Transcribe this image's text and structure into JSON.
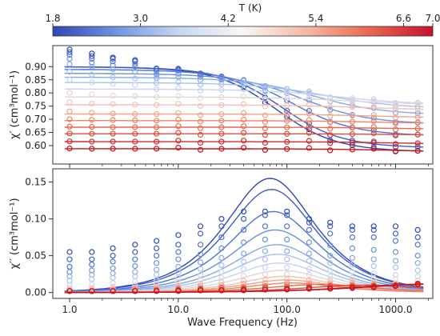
{
  "chart_data": [
    {
      "type": "colorbar",
      "title": "T (K)",
      "range": [
        1.8,
        7.0
      ],
      "ticks": [
        1.8,
        3.0,
        4.2,
        5.4,
        6.6,
        7.0
      ],
      "tick_labels": [
        "1.8",
        "3.0",
        "4.2",
        "5.4",
        "6.6",
        "7.0"
      ],
      "colormap": [
        "#2f48b5",
        "#6f94e0",
        "#c7d7f2",
        "#f7f7f7",
        "#f5b9a3",
        "#e8694f",
        "#c8102e"
      ]
    },
    {
      "type": "scatter",
      "ylabel": "χ′ (cm³mol⁻¹)",
      "xscale": "log",
      "xlim": [
        0.7,
        2200
      ],
      "ylim": [
        0.53,
        0.98
      ],
      "yticks": [
        0.6,
        0.65,
        0.7,
        0.75,
        0.8,
        0.85,
        0.9
      ],
      "ytick_labels": [
        "0.60",
        "0.65",
        "0.70",
        "0.75",
        "0.80",
        "0.85",
        "0.90"
      ],
      "x": [
        1,
        1.6,
        2.5,
        4,
        6.3,
        10,
        16,
        25,
        40,
        63,
        100,
        160,
        250,
        400,
        630,
        1000,
        1600
      ],
      "curves": [
        {
          "color": "#2f48b5",
          "chi0": 0.9,
          "chis": 0.575,
          "tau_freq": 80,
          "alpha": 0.1,
          "low_points": [
            0.965,
            0.95,
            0.935,
            0.925
          ]
        },
        {
          "color": "#3d5cc4",
          "chi0": 0.9,
          "chis": 0.59,
          "tau_freq": 90,
          "alpha": 0.1,
          "low_points": [
            0.955,
            0.94,
            0.93,
            0.92
          ]
        },
        {
          "color": "#4f73d2",
          "chi0": 0.89,
          "chis": 0.635,
          "tau_freq": 110,
          "alpha": 0.12,
          "low_points": [
            0.945,
            0.93,
            0.92,
            0.91
          ]
        },
        {
          "color": "#6a8fde",
          "chi0": 0.875,
          "chis": 0.68,
          "tau_freq": 140,
          "alpha": 0.14,
          "low_points": [
            0.93,
            0.915,
            0.905,
            0.9
          ]
        },
        {
          "color": "#89a9e6",
          "chi0": 0.86,
          "chis": 0.715,
          "tau_freq": 180,
          "alpha": 0.16,
          "low_points": [
            0.91,
            0.9,
            0.89,
            0.88
          ]
        },
        {
          "color": "#a9c0ee",
          "chi0": 0.84,
          "chis": 0.74,
          "tau_freq": 230,
          "alpha": 0.18,
          "low_points": [
            0.88,
            0.87,
            0.86,
            0.855
          ]
        },
        {
          "color": "#c6d4f2",
          "chi0": 0.815,
          "chis": 0.755,
          "tau_freq": 300,
          "alpha": 0.2,
          "low_points": [
            0.85,
            0.84,
            0.835,
            0.83
          ]
        },
        {
          "color": "#e1d6d6",
          "chi0": 0.785,
          "chis": 0.755,
          "tau_freq": 380,
          "alpha": 0.2,
          "low_points": [
            0.8,
            0.795,
            0.79,
            0.788
          ]
        },
        {
          "color": "#f2c2b2",
          "chi0": 0.755,
          "chis": 0.735,
          "tau_freq": 480,
          "alpha": 0.2,
          "low_points": [
            0.765,
            0.76,
            0.758,
            0.756
          ]
        },
        {
          "color": "#f2a48c",
          "chi0": 0.72,
          "chis": 0.705,
          "tau_freq": 600,
          "alpha": 0.2,
          "low_points": [
            0.73,
            0.725,
            0.722,
            0.72
          ]
        },
        {
          "color": "#ec8668",
          "chi0": 0.695,
          "chis": 0.683,
          "tau_freq": 700,
          "alpha": 0.2,
          "low_points": [
            0.7,
            0.698,
            0.697,
            0.696
          ]
        },
        {
          "color": "#e56a4e",
          "chi0": 0.67,
          "chis": 0.662,
          "tau_freq": 800,
          "alpha": 0.2,
          "low_points": [
            0.672,
            0.671,
            0.67,
            0.67
          ]
        },
        {
          "color": "#da4c3a",
          "chi0": 0.645,
          "chis": 0.64,
          "tau_freq": 900,
          "alpha": 0.2,
          "low_points": [
            0.646,
            0.645,
            0.645,
            0.645
          ]
        },
        {
          "color": "#cf2c2a",
          "chi0": 0.615,
          "chis": 0.605,
          "tau_freq": 1000,
          "alpha": 0.2,
          "low_points": [
            0.616,
            0.615,
            0.615,
            0.615
          ]
        },
        {
          "color": "#c4121f",
          "chi0": 0.588,
          "chis": 0.575,
          "tau_freq": 1100,
          "alpha": 0.2,
          "low_points": [
            0.589,
            0.588,
            0.588,
            0.588
          ]
        }
      ]
    },
    {
      "type": "scatter",
      "xlabel": "Wave Frequency (Hz)",
      "ylabel": "χ′′ (cm³mol⁻¹)",
      "xscale": "log",
      "xlim": [
        0.7,
        2200
      ],
      "ylim": [
        -0.008,
        0.168
      ],
      "xticks": [
        1,
        10,
        100,
        1000
      ],
      "xtick_labels": [
        "1.0",
        "10.0",
        "100.0",
        "1000.0"
      ],
      "yticks": [
        0,
        0.05,
        0.1,
        0.15
      ],
      "ytick_labels": [
        "0.00",
        "0.05",
        "0.10",
        "0.15"
      ],
      "x": [
        1,
        1.6,
        2.5,
        4,
        6.3,
        10,
        16,
        25,
        40,
        63,
        100,
        160,
        250,
        400,
        630,
        1000,
        1600
      ],
      "curves": [
        {
          "color": "#2f48b5",
          "peak": 0.155,
          "peak_freq": 70,
          "width": 0.6,
          "points": [
            0.055,
            0.055,
            0.06,
            0.065,
            0.07,
            0.078,
            0.09,
            0.1,
            0.11,
            0.11,
            0.11,
            0.1,
            0.095,
            0.09,
            0.09,
            0.09,
            0.085
          ]
        },
        {
          "color": "#3d5cc4",
          "peak": 0.14,
          "peak_freq": 72,
          "width": 0.6,
          "points": [
            0.045,
            0.045,
            0.05,
            0.055,
            0.06,
            0.065,
            0.08,
            0.09,
            0.1,
            0.105,
            0.105,
            0.095,
            0.09,
            0.085,
            0.085,
            0.08,
            0.075
          ]
        },
        {
          "color": "#4f73d2",
          "peak": 0.11,
          "peak_freq": 75,
          "width": 0.6,
          "points": [
            0.035,
            0.038,
            0.042,
            0.045,
            0.05,
            0.055,
            0.065,
            0.075,
            0.085,
            0.09,
            0.09,
            0.085,
            0.08,
            0.075,
            0.075,
            0.07,
            0.065
          ]
        },
        {
          "color": "#6a8fde",
          "peak": 0.085,
          "peak_freq": 78,
          "width": 0.6,
          "points": [
            0.028,
            0.03,
            0.033,
            0.036,
            0.04,
            0.045,
            0.052,
            0.06,
            0.068,
            0.072,
            0.072,
            0.068,
            0.064,
            0.06,
            0.058,
            0.055,
            0.05
          ]
        },
        {
          "color": "#89a9e6",
          "peak": 0.065,
          "peak_freq": 80,
          "width": 0.6,
          "points": [
            0.022,
            0.024,
            0.026,
            0.028,
            0.031,
            0.035,
            0.041,
            0.047,
            0.053,
            0.056,
            0.056,
            0.053,
            0.05,
            0.047,
            0.045,
            0.043,
            0.04
          ]
        },
        {
          "color": "#a9c0ee",
          "peak": 0.052,
          "peak_freq": 82,
          "width": 0.6,
          "points": [
            0.016,
            0.018,
            0.02,
            0.022,
            0.024,
            0.027,
            0.032,
            0.037,
            0.042,
            0.045,
            0.045,
            0.043,
            0.04,
            0.038,
            0.036,
            0.034,
            0.03
          ]
        },
        {
          "color": "#c6d4f2",
          "peak": 0.04,
          "peak_freq": 85,
          "width": 0.6,
          "points": [
            0.01,
            0.011,
            0.013,
            0.015,
            0.017,
            0.02,
            0.024,
            0.028,
            0.032,
            0.034,
            0.034,
            0.032,
            0.03,
            0.028,
            0.026,
            0.024,
            0.022
          ]
        },
        {
          "color": "#e1d6d6",
          "peak": 0.03,
          "peak_freq": 90,
          "width": 0.6,
          "points": [
            0.006,
            0.007,
            0.008,
            0.01,
            0.012,
            0.014,
            0.017,
            0.02,
            0.023,
            0.025,
            0.025,
            0.024,
            0.022,
            0.02,
            0.019,
            0.018,
            0.016
          ]
        },
        {
          "color": "#f2c2b2",
          "peak": 0.022,
          "peak_freq": 95,
          "width": 0.6,
          "points": [
            0.004,
            0.005,
            0.006,
            0.007,
            0.008,
            0.01,
            0.012,
            0.014,
            0.016,
            0.018,
            0.018,
            0.017,
            0.016,
            0.015,
            0.014,
            0.013,
            0.012
          ]
        },
        {
          "color": "#f2a48c",
          "peak": 0.017,
          "peak_freq": 100,
          "width": 0.6,
          "points": [
            0.003,
            0.003,
            0.004,
            0.005,
            0.006,
            0.007,
            0.009,
            0.01,
            0.012,
            0.013,
            0.013,
            0.013,
            0.012,
            0.012,
            0.011,
            0.011,
            0.01
          ]
        },
        {
          "color": "#ec8668",
          "peak": 0.013,
          "peak_freq": 110,
          "width": 0.6,
          "points": [
            0.002,
            0.002,
            0.003,
            0.003,
            0.004,
            0.005,
            0.006,
            0.007,
            0.008,
            0.009,
            0.01,
            0.01,
            0.01,
            0.01,
            0.01,
            0.01,
            0.009
          ]
        },
        {
          "color": "#e56a4e",
          "peak": 0.011,
          "peak_freq": 200,
          "width": 0.7,
          "points": [
            0.002,
            0.002,
            0.002,
            0.003,
            0.003,
            0.004,
            0.005,
            0.006,
            0.006,
            0.007,
            0.008,
            0.008,
            0.009,
            0.009,
            0.009,
            0.01,
            0.01
          ]
        },
        {
          "color": "#da4c3a",
          "peak": 0.01,
          "peak_freq": 500,
          "width": 0.8,
          "points": [
            0.002,
            0.002,
            0.002,
            0.002,
            0.003,
            0.003,
            0.004,
            0.004,
            0.005,
            0.006,
            0.006,
            0.007,
            0.008,
            0.008,
            0.009,
            0.01,
            0.01
          ]
        },
        {
          "color": "#cf2c2a",
          "peak": 0.011,
          "peak_freq": 1500,
          "width": 0.9,
          "points": [
            0.002,
            0.002,
            0.002,
            0.002,
            0.002,
            0.003,
            0.003,
            0.003,
            0.004,
            0.004,
            0.005,
            0.006,
            0.006,
            0.007,
            0.008,
            0.009,
            0.011
          ]
        },
        {
          "color": "#c4121f",
          "peak": 0.012,
          "peak_freq": 2500,
          "width": 1.0,
          "points": [
            0.002,
            0.002,
            0.002,
            0.002,
            0.002,
            0.002,
            0.003,
            0.003,
            0.003,
            0.004,
            0.004,
            0.005,
            0.005,
            0.006,
            0.007,
            0.009,
            0.012
          ]
        }
      ]
    }
  ]
}
